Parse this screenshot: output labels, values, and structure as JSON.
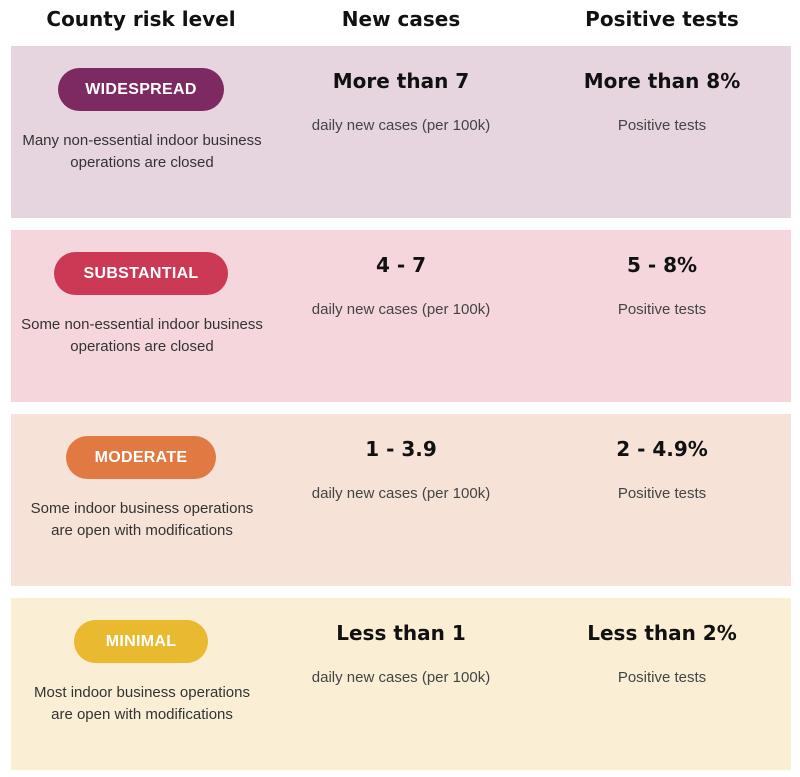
{
  "header": {
    "risk_level": "County risk level",
    "new_cases": "New cases",
    "positive_tests": "Positive tests"
  },
  "tiers": [
    {
      "label": "WIDESPREAD",
      "description_line1": "Many non-essential indoor business",
      "description_line2": "operations are closed",
      "cases_value": "More than 7",
      "cases_unit": "daily new cases (per 100k)",
      "tests_value": "More than 8%",
      "tests_unit": "Positive tests",
      "pill_color": "#7d2a63",
      "bg_color": "#e6d4df"
    },
    {
      "label": "SUBSTANTIAL",
      "description_line1": "Some non-essential indoor business",
      "description_line2": "operations are closed",
      "cases_value": "4 - 7",
      "cases_unit": "daily new cases (per 100k)",
      "tests_value": "5 - 8%",
      "tests_unit": "Positive tests",
      "pill_color": "#cc3955",
      "bg_color": "#f4d6dc"
    },
    {
      "label": "MODERATE",
      "description_line1": "Some indoor business operations",
      "description_line2": "are open with modifications",
      "cases_value": "1 - 3.9",
      "cases_unit": "daily new cases (per 100k)",
      "tests_value": "2 - 4.9%",
      "tests_unit": "Positive tests",
      "pill_color": "#e07a42",
      "bg_color": "#f6e2d7"
    },
    {
      "label": "MINIMAL",
      "description_line1": "Most indoor business operations",
      "description_line2": "are open with modifications",
      "cases_value": "Less than 1",
      "cases_unit": "daily new cases (per 100k)",
      "tests_value": "Less than 2%",
      "tests_unit": "Positive tests",
      "pill_color": "#e9b930",
      "bg_color": "#faefd5"
    }
  ]
}
